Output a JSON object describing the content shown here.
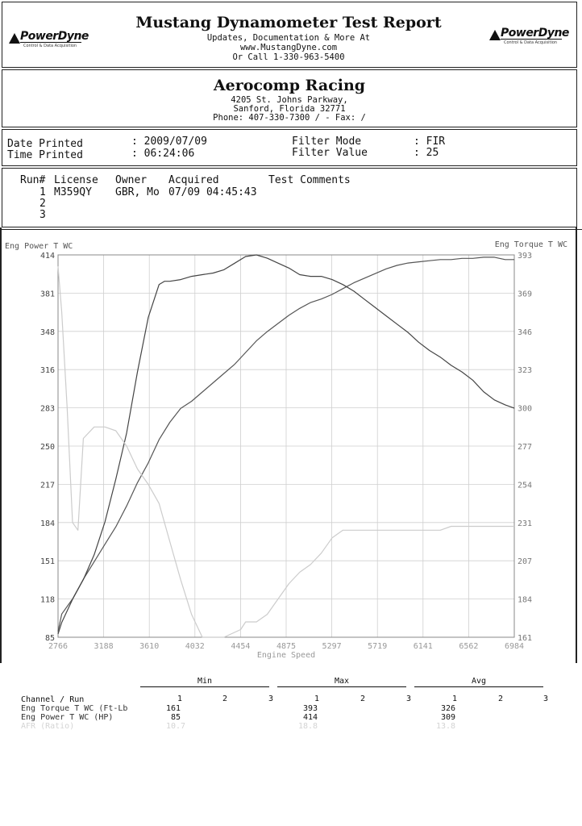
{
  "header": {
    "title": "Mustang Dynamometer Test Report",
    "line1": "Updates, Documentation & More At",
    "line2": "www.MustangDyne.com",
    "line3": "Or Call 1-330-963-5400",
    "logo_text": "PowerDyne",
    "logo_tagline": "Control & Data Acquisition"
  },
  "shop": {
    "name": "Aerocomp Racing",
    "address1": "4205 St. Johns Parkway,",
    "address2": "Sanford, Florida  32771",
    "phone": "Phone: 407-330-7300 /  - Fax:  /"
  },
  "print_info": {
    "date_label": "Date Printed",
    "date_value": ": 2009/07/09",
    "time_label": "Time Printed",
    "time_value": ": 06:24:06",
    "filter_mode_label": "Filter Mode",
    "filter_mode_value": ": FIR",
    "filter_value_label": "Filter Value",
    "filter_value_value": ": 25"
  },
  "runs": {
    "headers": [
      "Run#",
      "License",
      "Owner",
      "Acquired",
      "Test Comments"
    ],
    "rows": [
      {
        "num": "1",
        "license": "M359QY",
        "owner": "GBR, Mo",
        "acquired": "07/09 04:45:43"
      },
      {
        "num": "2",
        "license": "",
        "owner": "",
        "acquired": ""
      },
      {
        "num": "3",
        "license": "",
        "owner": "",
        "acquired": ""
      }
    ]
  },
  "chart_data": {
    "type": "line",
    "xlabel": "Engine Speed",
    "ylabel_left": "Eng Power T WC",
    "ylabel_right": "Eng Torque T WC",
    "xlim": [
      2766,
      6984
    ],
    "ylim_left": [
      85,
      414
    ],
    "ylim_right": [
      161,
      393
    ],
    "x_ticks": [
      "2766",
      "3188",
      "3610",
      "4032",
      "4454",
      "4875",
      "5297",
      "5719",
      "6141",
      "6562",
      "6984"
    ],
    "y_ticks_left": [
      "85",
      "118",
      "151",
      "184",
      "217",
      "250",
      "283",
      "316",
      "348",
      "381",
      "414"
    ],
    "y_ticks_right": [
      "161",
      "184",
      "207",
      "231",
      "254",
      "277",
      "300",
      "323",
      "346",
      "369",
      "393"
    ],
    "grid": true,
    "series": [
      {
        "axis": "left",
        "color": "#555555",
        "x": [
          2766,
          2800,
          2900,
          3000,
          3100,
          3200,
          3300,
          3400,
          3500,
          3600,
          3700,
          3800,
          3900,
          4000,
          4100,
          4200,
          4300,
          4400,
          4500,
          4600,
          4700,
          4800,
          4900,
          5000,
          5100,
          5200,
          5300,
          5400,
          5500,
          5600,
          5700,
          5800,
          5900,
          6000,
          6100,
          6200,
          6300,
          6400,
          6500,
          6600,
          6700,
          6800,
          6900,
          6984
        ],
        "values": [
          90,
          105,
          118,
          135,
          150,
          165,
          180,
          198,
          218,
          235,
          255,
          270,
          282,
          288,
          296,
          304,
          312,
          320,
          330,
          340,
          348,
          355,
          362,
          368,
          373,
          376,
          380,
          385,
          390,
          394,
          398,
          402,
          405,
          407,
          408,
          409,
          410,
          410,
          411,
          411,
          412,
          412,
          410,
          410
        ]
      },
      {
        "axis": "right",
        "color": "#444444",
        "x": [
          2766,
          2800,
          2900,
          3000,
          3100,
          3200,
          3300,
          3400,
          3500,
          3600,
          3700,
          3750,
          3800,
          3900,
          4000,
          4100,
          4200,
          4300,
          4400,
          4500,
          4600,
          4700,
          4800,
          4900,
          5000,
          5100,
          5200,
          5300,
          5400,
          5500,
          5600,
          5700,
          5800,
          5900,
          6000,
          6100,
          6200,
          6300,
          6400,
          6500,
          6600,
          6700,
          6800,
          6900,
          6984
        ],
        "values": [
          163,
          170,
          184,
          196,
          211,
          231,
          257,
          285,
          322,
          355,
          375,
          377,
          377,
          378,
          380,
          381,
          382,
          384,
          388,
          392,
          393,
          391,
          388,
          385,
          381,
          380,
          380,
          378,
          375,
          371,
          366,
          361,
          356,
          351,
          346,
          340,
          335,
          331,
          326,
          322,
          317,
          310,
          305,
          302,
          300
        ]
      },
      {
        "color": "#cccccc",
        "x": [
          2766,
          2800,
          2850,
          2900,
          2950,
          3000,
          3100,
          3200,
          3300,
          3400,
          3500,
          3600,
          3700,
          3800,
          3900,
          4000,
          4100,
          4200,
          4300,
          4454,
          4500,
          4600,
          4700,
          4800,
          4900,
          5000,
          5100,
          5200,
          5300,
          5400,
          5500,
          5600,
          5700,
          5800,
          5900,
          6000,
          6100,
          6200,
          6300,
          6400,
          6500,
          6600,
          6700,
          6800,
          6900,
          6984
        ],
        "values": [
          0.97,
          0.85,
          0.6,
          0.3,
          0.28,
          0.52,
          0.55,
          0.55,
          0.54,
          0.5,
          0.44,
          0.4,
          0.35,
          0.25,
          0.15,
          0.06,
          0.0,
          0.0,
          0.0,
          0.02,
          0.04,
          0.04,
          0.06,
          0.1,
          0.14,
          0.17,
          0.19,
          0.22,
          0.26,
          0.28,
          0.28,
          0.28,
          0.28,
          0.28,
          0.28,
          0.28,
          0.28,
          0.28,
          0.28,
          0.29,
          0.29,
          0.29,
          0.29,
          0.29,
          0.29,
          0.29
        ]
      }
    ]
  },
  "summary": {
    "groups": [
      "Min",
      "Max",
      "Avg"
    ],
    "channel_header": "Channel / Run",
    "run_numbers": [
      "1",
      "2",
      "3"
    ],
    "rows": [
      {
        "label": "Eng Torque T WC (Ft-Lb",
        "min": "161",
        "max": "393",
        "avg": "326"
      },
      {
        "label": "Eng Power T WC (HP)",
        "min": "85",
        "max": "414",
        "avg": "309"
      },
      {
        "label": "AFR (Ratio)",
        "min": "10.7",
        "max": "18.8",
        "avg": "13.8"
      }
    ]
  }
}
